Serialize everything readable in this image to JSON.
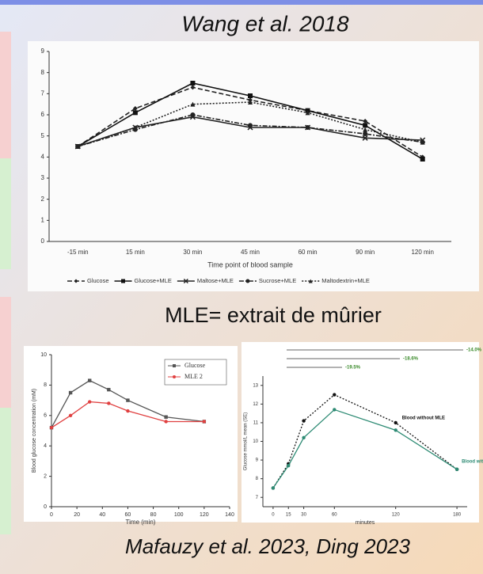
{
  "slide": {
    "heading": "Wang et al. 2018",
    "note": "MLE= extrait de mûrier",
    "caption": "Mafauzy et al. 2023, Ding 2023"
  },
  "chart_data": [
    {
      "type": "line",
      "x_label": "Time point of blood sample",
      "categories": [
        "-15 min",
        "15 min",
        "30 min",
        "45 min",
        "60 min",
        "90 min",
        "120 min"
      ],
      "ylim": [
        0,
        9
      ],
      "yticks": [
        0,
        1,
        2,
        3,
        4,
        5,
        6,
        7,
        8,
        9
      ],
      "legend": "bottom",
      "series": [
        {
          "name": "Glucose",
          "color": "#222222",
          "values": [
            4.5,
            6.3,
            7.3,
            6.7,
            6.2,
            5.7,
            4.0
          ]
        },
        {
          "name": "Glucose+MLE",
          "color": "#111111",
          "values": [
            4.5,
            6.1,
            7.5,
            6.9,
            6.2,
            5.5,
            3.9
          ]
        },
        {
          "name": "Maltose+MLE",
          "color": "#222222",
          "values": [
            4.5,
            5.4,
            5.9,
            5.4,
            5.4,
            4.9,
            4.8
          ]
        },
        {
          "name": "Sucrose+MLE",
          "color": "#222222",
          "values": [
            4.5,
            5.3,
            6.0,
            5.5,
            5.4,
            5.1,
            4.7
          ]
        },
        {
          "name": "Maltodextrin+MLE",
          "color": "#222222",
          "values": [
            4.5,
            5.4,
            6.5,
            6.6,
            6.1,
            5.3,
            4.7
          ]
        }
      ]
    },
    {
      "type": "line",
      "x_label": "Time (min)",
      "y_label": "Blood glucose concentration (mM)",
      "x": [
        0,
        15,
        30,
        45,
        60,
        90,
        120
      ],
      "xlim": [
        0,
        140
      ],
      "xticks": [
        0,
        20,
        40,
        60,
        80,
        100,
        120,
        140
      ],
      "ylim": [
        0,
        10
      ],
      "yticks": [
        0,
        2,
        4,
        6,
        8,
        10
      ],
      "legend": "upper right",
      "series": [
        {
          "name": "Glucose",
          "color": "#555555",
          "values": [
            5.2,
            7.5,
            8.3,
            7.7,
            7.0,
            5.9,
            5.6
          ]
        },
        {
          "name": "MLE 2",
          "color": "#e04040",
          "values": [
            5.2,
            6.0,
            6.9,
            6.8,
            6.3,
            5.6,
            5.6
          ]
        }
      ]
    },
    {
      "type": "line",
      "x_label": "minutes",
      "y_label": "Glucose mmol/L mean (SE)",
      "x": [
        0,
        15,
        30,
        60,
        120,
        180
      ],
      "xlim": [
        -10,
        190
      ],
      "xticks": [
        0,
        15,
        30,
        60,
        120,
        180
      ],
      "ylim": [
        6.5,
        13.5
      ],
      "yticks": [
        7,
        8,
        9,
        10,
        11,
        12,
        13
      ],
      "legend": "inline",
      "annotations": [
        "-14.0%",
        "-18.6%",
        "-19.5%"
      ],
      "series": [
        {
          "name": "Blood without MLE",
          "color": "#111111",
          "values": [
            7.5,
            8.8,
            11.1,
            12.5,
            11.0,
            8.5
          ]
        },
        {
          "name": "Blood with",
          "color": "#2e8b74",
          "values": [
            7.5,
            8.7,
            10.2,
            11.7,
            10.6,
            8.5
          ]
        }
      ]
    }
  ]
}
